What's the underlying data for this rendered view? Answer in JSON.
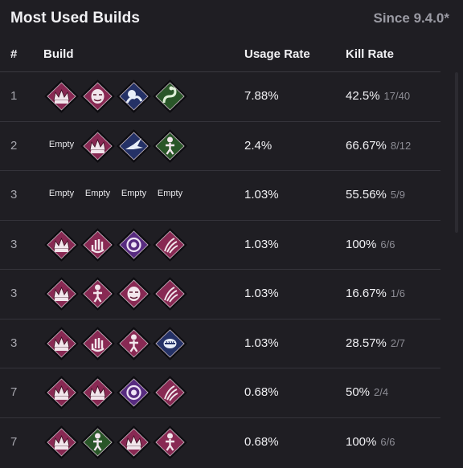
{
  "header": {
    "title": "Most Used Builds",
    "since": "Since 9.4.0*"
  },
  "columns": {
    "rank": "#",
    "build": "Build",
    "usage": "Usage Rate",
    "kill": "Kill Rate"
  },
  "colors": {
    "rare": "#8f2b57",
    "veryrare": "#5b2d86",
    "uncommon": "#2b5a2a",
    "ultrarare": "#25336b"
  },
  "rows": [
    {
      "rank": "1",
      "usage": "7.88%",
      "kill_pct": "42.5%",
      "kill_ratio": "17/40",
      "perks": [
        {
          "kind": "icon",
          "tier": "rare",
          "icon": "crown-icon"
        },
        {
          "kind": "icon",
          "tier": "rare",
          "icon": "face-icon"
        },
        {
          "kind": "icon",
          "tier": "ultrarare",
          "icon": "hands-icon"
        },
        {
          "kind": "icon",
          "tier": "uncommon",
          "icon": "serpent-icon"
        }
      ]
    },
    {
      "rank": "2",
      "usage": "2.4%",
      "kill_pct": "66.67%",
      "kill_ratio": "8/12",
      "perks": [
        {
          "kind": "empty",
          "label": "Empty"
        },
        {
          "kind": "icon",
          "tier": "rare",
          "icon": "crown-icon"
        },
        {
          "kind": "icon",
          "tier": "ultrarare",
          "icon": "bird-icon"
        },
        {
          "kind": "icon",
          "tier": "uncommon",
          "icon": "figure-icon"
        }
      ]
    },
    {
      "rank": "3",
      "usage": "1.03%",
      "kill_pct": "55.56%",
      "kill_ratio": "5/9",
      "perks": [
        {
          "kind": "empty",
          "label": "Empty"
        },
        {
          "kind": "empty",
          "label": "Empty"
        },
        {
          "kind": "empty",
          "label": "Empty"
        },
        {
          "kind": "empty",
          "label": "Empty"
        }
      ]
    },
    {
      "rank": "3",
      "usage": "1.03%",
      "kill_pct": "100%",
      "kill_ratio": "6/6",
      "perks": [
        {
          "kind": "icon",
          "tier": "rare",
          "icon": "crown-icon"
        },
        {
          "kind": "icon",
          "tier": "rare",
          "icon": "hand-icon"
        },
        {
          "kind": "icon",
          "tier": "veryrare",
          "icon": "swirl-icon"
        },
        {
          "kind": "icon",
          "tier": "rare",
          "icon": "claw-icon"
        }
      ]
    },
    {
      "rank": "3",
      "usage": "1.03%",
      "kill_pct": "16.67%",
      "kill_ratio": "1/6",
      "perks": [
        {
          "kind": "icon",
          "tier": "rare",
          "icon": "crown-icon"
        },
        {
          "kind": "icon",
          "tier": "rare",
          "icon": "figure-icon"
        },
        {
          "kind": "icon",
          "tier": "rare",
          "icon": "face-icon"
        },
        {
          "kind": "icon",
          "tier": "rare",
          "icon": "claw-icon"
        }
      ]
    },
    {
      "rank": "3",
      "usage": "1.03%",
      "kill_pct": "28.57%",
      "kill_ratio": "2/7",
      "perks": [
        {
          "kind": "icon",
          "tier": "rare",
          "icon": "crown-icon"
        },
        {
          "kind": "icon",
          "tier": "rare",
          "icon": "hand-icon"
        },
        {
          "kind": "icon",
          "tier": "rare",
          "icon": "figure-icon"
        },
        {
          "kind": "icon",
          "tier": "ultrarare",
          "icon": "mouth-icon"
        }
      ]
    },
    {
      "rank": "7",
      "usage": "0.68%",
      "kill_pct": "50%",
      "kill_ratio": "2/4",
      "perks": [
        {
          "kind": "icon",
          "tier": "rare",
          "icon": "crown-icon"
        },
        {
          "kind": "icon",
          "tier": "rare",
          "icon": "crown-icon"
        },
        {
          "kind": "icon",
          "tier": "veryrare",
          "icon": "swirl-icon"
        },
        {
          "kind": "icon",
          "tier": "rare",
          "icon": "claw-icon"
        }
      ]
    },
    {
      "rank": "7",
      "usage": "0.68%",
      "kill_pct": "100%",
      "kill_ratio": "6/6",
      "perks": [
        {
          "kind": "icon",
          "tier": "rare",
          "icon": "crown-icon"
        },
        {
          "kind": "icon",
          "tier": "uncommon",
          "icon": "figure-icon"
        },
        {
          "kind": "icon",
          "tier": "rare",
          "icon": "crown-icon"
        },
        {
          "kind": "icon",
          "tier": "rare",
          "icon": "figure-icon"
        }
      ]
    }
  ]
}
